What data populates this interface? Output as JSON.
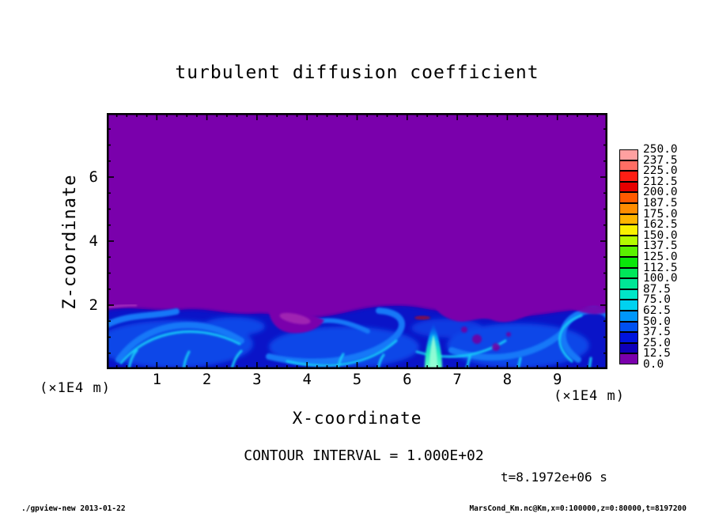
{
  "title": {
    "text": "turbulent diffusion coefficient"
  },
  "axes": {
    "x": {
      "label": "X-coordinate",
      "unit": "(×1E4 m)",
      "min": 0,
      "max": 10,
      "major_ticks": [
        1,
        2,
        3,
        4,
        5,
        6,
        7,
        8,
        9
      ],
      "minor_step": 0.2
    },
    "z": {
      "label": "Z-coordinate",
      "unit": "(×1E4 m)",
      "min": 0,
      "max": 8,
      "major_ticks": [
        2,
        4,
        6
      ],
      "minor_step": 0.5
    }
  },
  "colorbar": {
    "labels": [
      "0.0",
      "12.5",
      "25.0",
      "37.5",
      "50.0",
      "62.5",
      "75.0",
      "87.5",
      "100.0",
      "112.5",
      "125.0",
      "137.5",
      "150.0",
      "162.5",
      "175.0",
      "187.5",
      "200.0",
      "212.5",
      "225.0",
      "237.5",
      "250.0"
    ],
    "colors": [
      "#7A00AC",
      "#0F00B9",
      "#0014DC",
      "#0050F0",
      "#0096FA",
      "#00D2F0",
      "#00E6C8",
      "#00E696",
      "#00E65A",
      "#0AE60A",
      "#5AF000",
      "#B4FA00",
      "#FAF000",
      "#FFB400",
      "#FF8C00",
      "#FF5A00",
      "#E60000",
      "#FF1E14",
      "#FF6E64",
      "#FFA0A0"
    ]
  },
  "annotations": {
    "contour_interval": "CONTOUR INTERVAL = 1.000E+02",
    "time": "t=8.1972e+06 s"
  },
  "footer": {
    "left": "./gpview-new  2013-01-22",
    "right": "MarsCond_Km.nc@Km,x=0:100000,z=0:80000,t=8197200"
  },
  "chart_data": {
    "type": "heatmap",
    "title": "turbulent diffusion coefficient",
    "xlabel": "X-coordinate",
    "ylabel": "Z-coordinate",
    "x_unit": "(×1E4 m)",
    "z_unit": "(×1E4 m)",
    "x_range_m": [
      0,
      100000
    ],
    "z_range_m": [
      0,
      80000
    ],
    "x_ticks": [
      1,
      2,
      3,
      4,
      5,
      6,
      7,
      8,
      9
    ],
    "z_ticks": [
      2,
      4,
      6
    ],
    "levels": [
      0.0,
      12.5,
      25.0,
      37.5,
      50.0,
      62.5,
      75.0,
      87.5,
      100.0,
      112.5,
      125.0,
      137.5,
      150.0,
      162.5,
      175.0,
      187.5,
      200.0,
      212.5,
      225.0,
      237.5,
      250.0
    ],
    "contour_interval": 100.0,
    "time_s": 8197200,
    "background_value_color": "#7A00AC",
    "features": [
      {
        "name": "quiescent-upper-region",
        "z_extent_m": [
          20000,
          80000
        ],
        "value": "~0 (uniform purple)"
      },
      {
        "name": "turbulent-boundary-layer",
        "z_extent_m": [
          0,
          20000
        ],
        "value_range": "~12.5-100 (blue/cyan eddies and filaments)"
      },
      {
        "name": "bright-plume",
        "x_m": 65000,
        "z_extent_m": [
          0,
          14000
        ],
        "value_range": "~100-150 (cyan-green updraft)"
      },
      {
        "name": "purple-intrusions",
        "x_m": [
          36000,
          42000,
          70000,
          78000
        ],
        "value": "~0 wedges entrained into the mixed layer near z=2e4 m"
      }
    ],
    "legend_position": "right",
    "grid": false
  }
}
